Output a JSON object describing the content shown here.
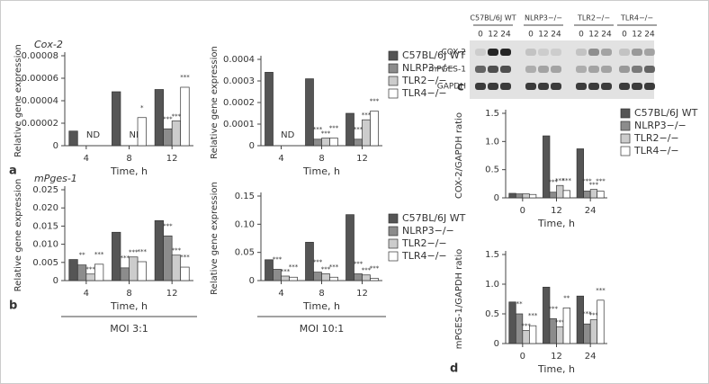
{
  "chart_data": [
    {
      "type": "bar",
      "subtitle": "Cox-2",
      "panel": "a",
      "ylabel": "Relative gene expression",
      "xlabel": "Time, h",
      "categories": [
        "4",
        "8",
        "12"
      ],
      "ylim": [
        0,
        8e-05
      ],
      "yticks": [
        0,
        2e-05,
        4e-05,
        6e-05,
        8e-05
      ],
      "category_notes": [
        "ND",
        "ND",
        null
      ],
      "series": [
        {
          "name": "C57BL/6J WT",
          "color": "#555555",
          "values": [
            1.3e-05,
            4.8e-05,
            5e-05
          ],
          "significance": [
            null,
            null,
            null
          ]
        },
        {
          "name": "NLRP3−/−",
          "color": "#8c8c8c",
          "values": [
            null,
            null,
            1.5e-05
          ],
          "significance": [
            null,
            null,
            "***"
          ]
        },
        {
          "name": "TLR2−/−",
          "color": "#cccccc",
          "values": [
            null,
            null,
            2.2e-05
          ],
          "significance": [
            null,
            null,
            "***"
          ]
        },
        {
          "name": "TLR4−/−",
          "color": "#ffffff",
          "values": [
            null,
            2.5e-05,
            5.2e-05
          ],
          "significance": [
            null,
            "*",
            "***"
          ]
        }
      ]
    },
    {
      "type": "bar",
      "ylabel": "Relative gene expression",
      "xlabel": "Time, h",
      "legend": "right",
      "categories": [
        "4",
        "8",
        "12"
      ],
      "ylim": [
        0,
        0.0004
      ],
      "yticks": [
        0,
        0.0001,
        0.0002,
        0.0003,
        0.0004
      ],
      "category_notes": [
        "ND",
        null,
        null
      ],
      "series": [
        {
          "name": "C57BL/6J WT",
          "color": "#555555",
          "values": [
            0.00034,
            0.00031,
            0.00015
          ],
          "significance": [
            null,
            null,
            null
          ]
        },
        {
          "name": "NLRP3−/−",
          "color": "#8c8c8c",
          "values": [
            null,
            3e-05,
            3e-05
          ],
          "significance": [
            null,
            "***",
            "***"
          ]
        },
        {
          "name": "TLR2−/−",
          "color": "#cccccc",
          "values": [
            null,
            3.5e-05,
            0.00012
          ],
          "significance": [
            null,
            "***",
            "***"
          ]
        },
        {
          "name": "TLR4−/−",
          "color": "#ffffff",
          "values": [
            null,
            3.5e-05,
            0.00016
          ],
          "significance": [
            null,
            "***",
            "***"
          ]
        }
      ]
    },
    {
      "type": "bar",
      "subtitle": "mPges-1",
      "panel": "b",
      "ylabel": "Relative gene expression",
      "xlabel": "Time, h",
      "group_label": "MOI 3:1",
      "categories": [
        "4",
        "8",
        "12"
      ],
      "ylim": [
        0,
        0.025
      ],
      "yticks": [
        0,
        0.005,
        {
          "value": 0.01,
          "label": "0.010"
        },
        0.015,
        {
          "value": 0.02,
          "label": "0.020"
        },
        0.025
      ],
      "series": [
        {
          "name": "C57BL/6J WT",
          "color": "#555555",
          "values": [
            0.0058,
            0.0133,
            0.0165
          ],
          "significance": [
            null,
            null,
            null
          ]
        },
        {
          "name": "NLRP3−/−",
          "color": "#8c8c8c",
          "values": [
            0.0043,
            0.0035,
            0.0123
          ],
          "significance": [
            "**",
            "***",
            "***"
          ]
        },
        {
          "name": "TLR2−/−",
          "color": "#cccccc",
          "values": [
            0.0018,
            0.0065,
            0.007
          ],
          "significance": [
            "***",
            "***",
            "***"
          ]
        },
        {
          "name": "TLR4−/−",
          "color": "#ffffff",
          "values": [
            0.0045,
            0.0052,
            0.0037
          ],
          "significance": [
            "***",
            "***",
            "***"
          ]
        }
      ]
    },
    {
      "type": "bar",
      "ylabel": "Relative gene expression",
      "xlabel": "Time, h",
      "group_label": "MOI 10:1",
      "legend": "right",
      "categories": [
        "4",
        "8",
        "12"
      ],
      "ylim": [
        0,
        0.15
      ],
      "yticks": [
        0,
        0.05,
        {
          "value": 0.1,
          "label": "0.10"
        },
        0.15
      ],
      "series": [
        {
          "name": "C57BL/6J WT",
          "color": "#555555",
          "values": [
            0.037,
            0.068,
            0.117
          ],
          "significance": [
            null,
            null,
            null
          ]
        },
        {
          "name": "NLRP3−/−",
          "color": "#8c8c8c",
          "values": [
            0.02,
            0.015,
            0.012
          ],
          "significance": [
            "***",
            "***",
            "***"
          ]
        },
        {
          "name": "TLR2−/−",
          "color": "#cccccc",
          "values": [
            0.008,
            0.012,
            0.01
          ],
          "significance": [
            "***",
            "***",
            "***"
          ]
        },
        {
          "name": "TLR4−/−",
          "color": "#ffffff",
          "values": [
            0.006,
            0.006,
            0.004
          ],
          "significance": [
            "***",
            "***",
            "***"
          ]
        }
      ]
    },
    {
      "type": "bar",
      "ylabel": "COX-2/GAPDH ratio",
      "xlabel": "Time, h",
      "legend": "right",
      "categories": [
        "0",
        "12",
        "24"
      ],
      "ylim": [
        0,
        1.5
      ],
      "yticks": [
        0,
        0.5,
        {
          "value": 1,
          "label": "1.0"
        },
        1.5
      ],
      "series": [
        {
          "name": "C57BL/6J WT",
          "color": "#555555",
          "values": [
            0.08,
            1.1,
            0.87
          ],
          "significance": [
            null,
            null,
            null
          ]
        },
        {
          "name": "NLRP3−/−",
          "color": "#8c8c8c",
          "values": [
            0.07,
            0.1,
            0.12
          ],
          "significance": [
            null,
            "***",
            "***"
          ]
        },
        {
          "name": "TLR2−/−",
          "color": "#cccccc",
          "values": [
            0.07,
            0.22,
            0.15
          ],
          "significance": [
            null,
            "***",
            "***"
          ]
        },
        {
          "name": "TLR4−/−",
          "color": "#ffffff",
          "values": [
            0.06,
            0.13,
            0.12
          ],
          "significance": [
            null,
            "***",
            "***"
          ]
        }
      ]
    },
    {
      "type": "bar",
      "panel": "d",
      "ylabel": "mPGES-1/GAPDH ratio",
      "xlabel": "Time, h",
      "categories": [
        "0",
        "12",
        "24"
      ],
      "ylim": [
        0,
        1.5
      ],
      "yticks": [
        0,
        0.5,
        {
          "value": 1,
          "label": "1.0"
        },
        1.5
      ],
      "series": [
        {
          "name": "C57BL/6J WT",
          "color": "#555555",
          "values": [
            0.7,
            0.95,
            0.8
          ],
          "significance": [
            null,
            null,
            null
          ]
        },
        {
          "name": "NLRP3−/−",
          "color": "#8c8c8c",
          "values": [
            0.5,
            0.42,
            0.33
          ],
          "significance": [
            "**",
            "***",
            "***"
          ]
        },
        {
          "name": "TLR2−/−",
          "color": "#cccccc",
          "values": [
            0.22,
            0.28,
            0.4
          ],
          "significance": [
            "***",
            "***",
            "***"
          ]
        },
        {
          "name": "TLR4−/−",
          "color": "#ffffff",
          "values": [
            0.3,
            0.6,
            0.73
          ],
          "significance": [
            "***",
            "**",
            "***"
          ]
        }
      ]
    }
  ],
  "blot": {
    "panel": "c",
    "columns": [
      "C57BL/6J WT",
      "NLRP3−/−",
      "TLR2−/−",
      "TLR4−/−"
    ],
    "times": [
      "0",
      "12",
      "24"
    ],
    "rows": [
      "COX-2",
      "mPGES-1",
      "GAPDH"
    ]
  }
}
